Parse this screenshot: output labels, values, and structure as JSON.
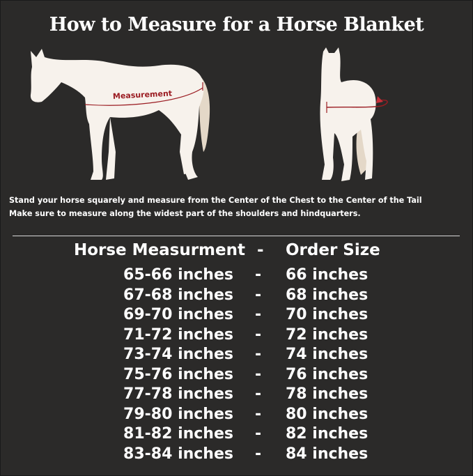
{
  "title": "How to Measure for a Horse Blanket",
  "diagram": {
    "side_label": "Measurement",
    "measure_color": "#9b1c22",
    "horse_color": "#f7f2ec",
    "tail_color": "#e4d8c8"
  },
  "instructions": [
    "Stand your horse squarely and measure from the Center of the Chest to the Center of the Tail",
    "Make sure to measure along the widest part of the shoulders and hindquarters."
  ],
  "table": {
    "headers": {
      "measurement": "Horse Measurment",
      "separator": "-",
      "size": "Order Size"
    },
    "rows": [
      {
        "measurement": "65-66 inches",
        "separator": "-",
        "size": "66 inches"
      },
      {
        "measurement": "67-68 inches",
        "separator": "-",
        "size": "68 inches"
      },
      {
        "measurement": "69-70 inches",
        "separator": "-",
        "size": "70 inches"
      },
      {
        "measurement": "71-72 inches",
        "separator": "-",
        "size": "72 inches"
      },
      {
        "measurement": "73-74 inches",
        "separator": "-",
        "size": "74 inches"
      },
      {
        "measurement": "75-76 inches",
        "separator": "-",
        "size": "76 inches"
      },
      {
        "measurement": "77-78 inches",
        "separator": "-",
        "size": "78 inches"
      },
      {
        "measurement": "79-80 inches",
        "separator": "-",
        "size": "80 inches"
      },
      {
        "measurement": "81-82 inches",
        "separator": "-",
        "size": "82 inches"
      },
      {
        "measurement": "83-84 inches",
        "separator": "-",
        "size": "84 inches"
      }
    ]
  }
}
